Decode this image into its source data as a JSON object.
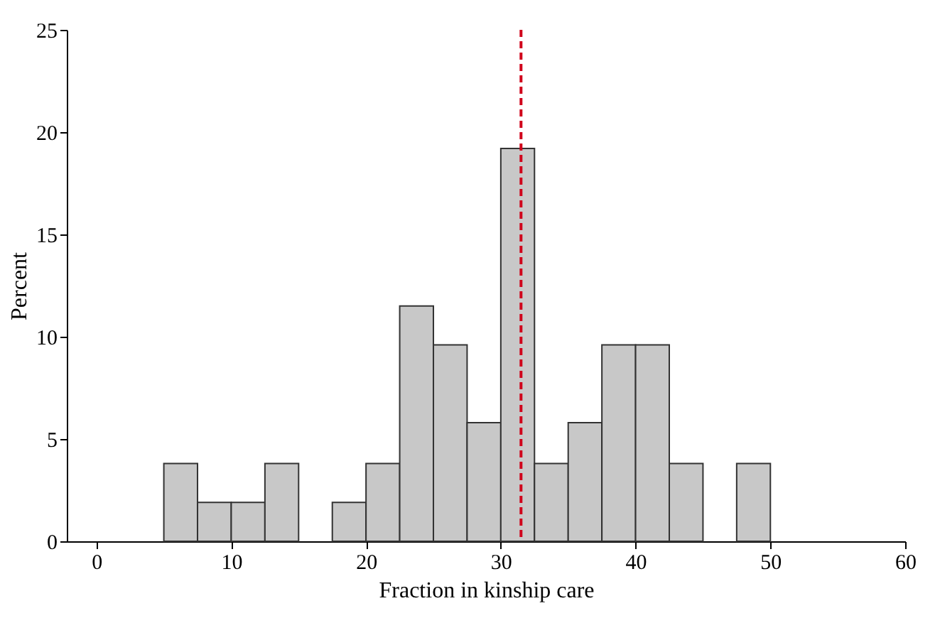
{
  "chart_data": {
    "type": "histogram",
    "xlabel": "Fraction in kinship care",
    "ylabel": "Percent",
    "bins": [
      5,
      7.5,
      10,
      12.5,
      15,
      17.5,
      20,
      22.5,
      25,
      27.5,
      30,
      32.5,
      35,
      37.5,
      40,
      42.5,
      45,
      47.5,
      50
    ],
    "values": [
      3.8,
      1.9,
      1.9,
      3.8,
      0,
      1.9,
      3.8,
      11.5,
      9.6,
      5.8,
      19.2,
      3.8,
      5.8,
      9.6,
      9.6,
      3.8,
      0,
      3.8
    ],
    "color": "#c8c8c8",
    "xlim": [
      -2.2,
      60
    ],
    "xticks": [
      0,
      10,
      20,
      30,
      40,
      50,
      60
    ],
    "ylim": [
      0,
      25
    ],
    "yticks": [
      0,
      5,
      10,
      15,
      20,
      25
    ],
    "ref_lines": [
      {
        "axis": "x",
        "value": 31.5,
        "color": "#d0021b",
        "line_style": "dashed"
      }
    ],
    "grid": false
  }
}
